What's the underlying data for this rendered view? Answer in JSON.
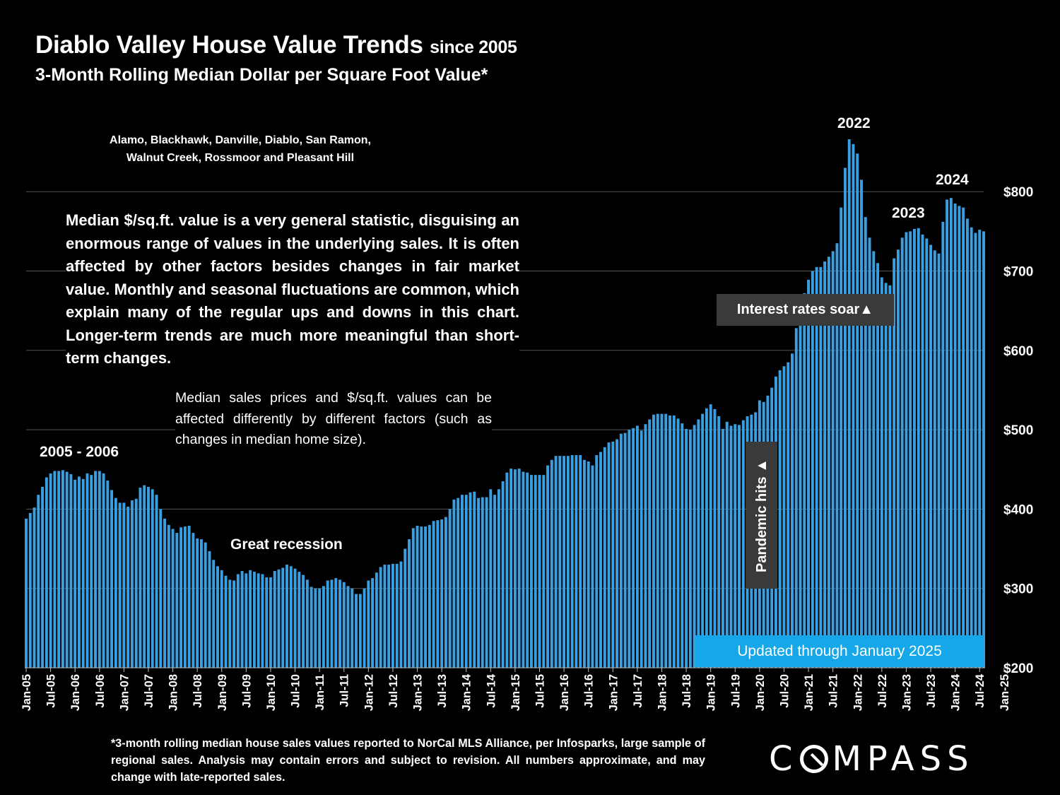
{
  "title": {
    "main": "Diablo Valley House Value Trends",
    "since": "since 2005"
  },
  "subtitle": "3-Month Rolling Median Dollar per Square Foot Value*",
  "areas": [
    "Alamo, Blackhawk, Danville, Diablo, San Ramon,",
    "Walnut Creek, Rossmoor and Pleasant Hill"
  ],
  "note_general": "Median $/sq.ft. value is a very general statistic, disguising an enormous range of values in the underlying sales. It is often affected by other factors besides changes in fair market value. Monthly and seasonal fluctuations are common, which explain many of the regular ups and downs in this chart. Longer-term trends are much more meaningful than short-term changes.",
  "note_factors": "Median sales prices and $/sq.ft. values can be affected differently by different factors (such as changes in median home size).",
  "labels": {
    "y2005_2006": "2005 - 2006",
    "great_recession": "Great recession",
    "y2022": "2022",
    "y2023": "2023",
    "y2024": "2024"
  },
  "callouts": {
    "interest_rates": "Interest rates soar▲",
    "pandemic": "Pandemic hits ▲",
    "updated": "Updated through January 2025"
  },
  "footnote": "*3-month rolling median house sales values reported to NorCal MLS Alliance, per Infosparks, large sample of regional sales. Analysis may contain errors and subject to revision. All numbers approximate, and may change with late-reported sales.",
  "logo": {
    "pre": "C",
    "post": "MPASS"
  },
  "colors": {
    "bar": "#3a9fe0",
    "grid": "#555555",
    "updated_bg": "#16a7e8",
    "callout_bg": "#3a3a3a"
  },
  "chart_data": {
    "type": "bar",
    "ylim": [
      200,
      900
    ],
    "y_ticks": [
      "$200",
      "$300",
      "$400",
      "$500",
      "$600",
      "$700",
      "$800"
    ],
    "y_tick_values": [
      200,
      300,
      400,
      500,
      600,
      700,
      800
    ],
    "x_tick_labels": [
      "Jan-05",
      "Jul-05",
      "Jan-06",
      "Jul-06",
      "Jan-07",
      "Jul-07",
      "Jan-08",
      "Jul-08",
      "Jan-09",
      "Jul-09",
      "Jan-10",
      "Jul-10",
      "Jan-11",
      "Jul-11",
      "Jan-12",
      "Jul-12",
      "Jan-13",
      "Jul-13",
      "Jan-14",
      "Jul-14",
      "Jan-15",
      "Jul-15",
      "Jan-16",
      "Jul-16",
      "Jan-17",
      "Jul-17",
      "Jan-18",
      "Jul-18",
      "Jan-19",
      "Jul-19",
      "Jan-20",
      "Jul-20",
      "Jan-21",
      "Jul-21",
      "Jan-22",
      "Jul-22",
      "Jan-23",
      "Jul-23",
      "Jan-24",
      "Jul-24",
      "Jan-25"
    ],
    "start_month": "Jan-05",
    "end_month": "Jan-25",
    "values": [
      388,
      395,
      402,
      418,
      428,
      440,
      445,
      448,
      448,
      449,
      447,
      444,
      437,
      441,
      438,
      445,
      443,
      448,
      448,
      445,
      436,
      424,
      414,
      408,
      408,
      403,
      411,
      413,
      427,
      430,
      428,
      425,
      418,
      400,
      388,
      380,
      375,
      370,
      377,
      378,
      379,
      370,
      363,
      362,
      358,
      347,
      336,
      328,
      323,
      316,
      311,
      310,
      318,
      322,
      319,
      323,
      321,
      319,
      318,
      314,
      314,
      322,
      324,
      326,
      330,
      328,
      325,
      321,
      317,
      311,
      302,
      300,
      300,
      303,
      310,
      311,
      313,
      311,
      308,
      303,
      300,
      293,
      293,
      300,
      310,
      313,
      320,
      327,
      330,
      330,
      331,
      331,
      334,
      350,
      362,
      376,
      379,
      378,
      378,
      380,
      385,
      386,
      387,
      390,
      400,
      412,
      414,
      418,
      418,
      421,
      422,
      414,
      415,
      415,
      425,
      418,
      425,
      435,
      446,
      451,
      450,
      451,
      447,
      446,
      443,
      443,
      443,
      443,
      455,
      462,
      467,
      467,
      467,
      467,
      468,
      468,
      468,
      462,
      460,
      455,
      468,
      472,
      478,
      484,
      485,
      488,
      495,
      496,
      500,
      502,
      505,
      499,
      507,
      513,
      519,
      520,
      520,
      520,
      518,
      518,
      514,
      508,
      501,
      500,
      506,
      513,
      520,
      527,
      532,
      526,
      517,
      501,
      510,
      505,
      507,
      506,
      512,
      517,
      519,
      522,
      537,
      535,
      543,
      553,
      567,
      575,
      580,
      585,
      596,
      628,
      655,
      672,
      689,
      700,
      705,
      705,
      712,
      718,
      725,
      735,
      780,
      830,
      866,
      860,
      848,
      815,
      768,
      742,
      725,
      710,
      692,
      685,
      682,
      716,
      727,
      742,
      749,
      750,
      753,
      754,
      746,
      741,
      733,
      726,
      722,
      762,
      790,
      792,
      785,
      782,
      780,
      766,
      755,
      748,
      752,
      750
    ]
  }
}
